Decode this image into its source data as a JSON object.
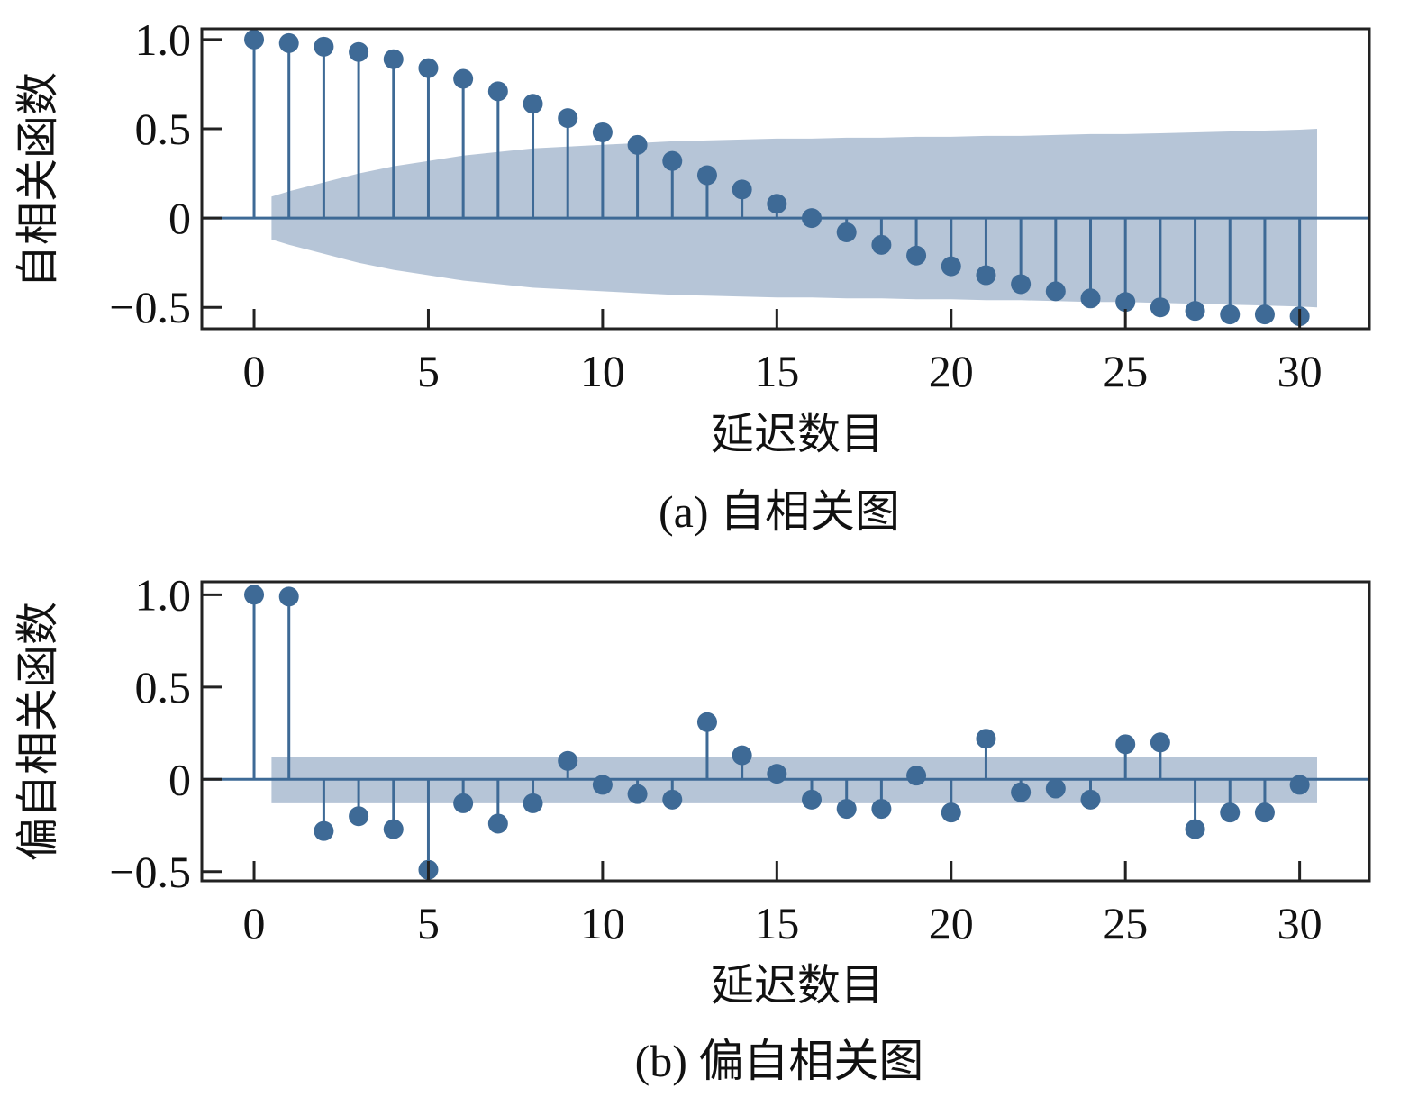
{
  "chart_data": [
    {
      "type": "stem",
      "caption": "(a) 自相关图",
      "xlabel": "延迟数目",
      "ylabel": "自相关函数",
      "xlim": [
        -1.5,
        32
      ],
      "ylim": [
        -0.62,
        1.06
      ],
      "xticks": [
        "0",
        "5",
        "10",
        "15",
        "20",
        "25",
        "30"
      ],
      "yticks": [
        "1.0",
        "0.5",
        "0",
        "−0.5"
      ],
      "x": [
        0,
        1,
        2,
        3,
        4,
        5,
        6,
        7,
        8,
        9,
        10,
        11,
        12,
        13,
        14,
        15,
        16,
        17,
        18,
        19,
        20,
        21,
        22,
        23,
        24,
        25,
        26,
        27,
        28,
        29,
        30
      ],
      "values": [
        1.0,
        0.98,
        0.96,
        0.93,
        0.89,
        0.84,
        0.78,
        0.71,
        0.64,
        0.56,
        0.48,
        0.41,
        0.32,
        0.24,
        0.16,
        0.08,
        0.0,
        -0.08,
        -0.15,
        -0.21,
        -0.27,
        -0.32,
        -0.37,
        -0.41,
        -0.45,
        -0.47,
        -0.5,
        -0.52,
        -0.54,
        -0.54,
        -0.55
      ],
      "confidence_band": {
        "x": [
          0.5,
          1,
          2,
          3,
          4,
          5,
          6,
          7,
          8,
          9,
          10,
          11,
          12,
          13,
          14,
          15,
          16,
          17,
          18,
          19,
          20,
          21,
          22,
          23,
          24,
          25,
          26,
          27,
          28,
          29,
          30,
          30.5
        ],
        "upper": [
          0.12,
          0.15,
          0.2,
          0.25,
          0.29,
          0.32,
          0.35,
          0.37,
          0.39,
          0.4,
          0.41,
          0.42,
          0.43,
          0.435,
          0.44,
          0.445,
          0.445,
          0.45,
          0.45,
          0.455,
          0.455,
          0.46,
          0.46,
          0.465,
          0.47,
          0.47,
          0.475,
          0.48,
          0.485,
          0.49,
          0.495,
          0.5
        ]
      },
      "colors": {
        "stem": "#3e6a96",
        "band": "#a9bbd0",
        "axes": "#222222"
      }
    },
    {
      "type": "stem",
      "caption": "(b) 偏自相关图",
      "xlabel": "延迟数目",
      "ylabel": "偏自相关函数",
      "xlim": [
        -1.5,
        32
      ],
      "ylim": [
        -0.55,
        1.07
      ],
      "xticks": [
        "0",
        "5",
        "10",
        "15",
        "20",
        "25",
        "30"
      ],
      "yticks": [
        "1.0",
        "0.5",
        "0",
        "−0.5"
      ],
      "x": [
        0,
        1,
        2,
        3,
        4,
        5,
        6,
        7,
        8,
        9,
        10,
        11,
        12,
        13,
        14,
        15,
        16,
        17,
        18,
        19,
        20,
        21,
        22,
        23,
        24,
        25,
        26,
        27,
        28,
        29,
        30
      ],
      "values": [
        1.0,
        0.99,
        -0.28,
        -0.2,
        -0.27,
        -0.49,
        -0.13,
        -0.24,
        -0.13,
        0.1,
        -0.03,
        -0.08,
        -0.11,
        0.31,
        0.13,
        0.03,
        -0.11,
        -0.16,
        -0.16,
        0.02,
        -0.18,
        0.22,
        -0.07,
        -0.05,
        -0.11,
        0.19,
        0.2,
        -0.27,
        -0.18,
        -0.18,
        -0.03
      ],
      "confidence_band": {
        "x": [
          0.5,
          30.5
        ],
        "upper": [
          0.12,
          0.12
        ],
        "lower": [
          -0.13,
          -0.13
        ]
      },
      "colors": {
        "stem": "#3e6a96",
        "band": "#a9bbd0",
        "axes": "#222222"
      }
    }
  ]
}
